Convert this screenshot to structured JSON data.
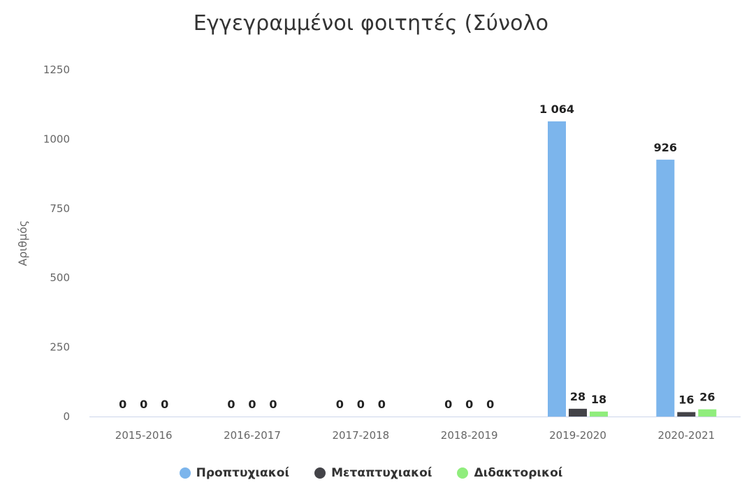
{
  "chart_data": {
    "type": "bar",
    "title": "Εγγεγραμμένοι φοιτητές (Σύνολο",
    "ylabel": "Αριθμός",
    "xlabel": "",
    "ylim": [
      0,
      1250
    ],
    "yticks": [
      0,
      250,
      500,
      750,
      1000,
      1250
    ],
    "ytick_labels": [
      "0",
      "250",
      "500",
      "750",
      "1000",
      "1250"
    ],
    "categories": [
      "2015-2016",
      "2016-2017",
      "2017-2018",
      "2018-2019",
      "2019-2020",
      "2020-2021"
    ],
    "series": [
      {
        "name": "Προπτυχιακοί",
        "color": "#7cb5ec",
        "values": [
          0,
          0,
          0,
          0,
          1064,
          926
        ],
        "labels": [
          "0",
          "0",
          "0",
          "0",
          "1 064",
          "926"
        ]
      },
      {
        "name": "Μεταπτυχιακοί",
        "color": "#434348",
        "values": [
          0,
          0,
          0,
          0,
          28,
          16
        ],
        "labels": [
          "0",
          "0",
          "0",
          "0",
          "28",
          "16"
        ]
      },
      {
        "name": "Διδακτορικοί",
        "color": "#90ed7d",
        "values": [
          0,
          0,
          0,
          0,
          18,
          26
        ],
        "labels": [
          "0",
          "0",
          "0",
          "0",
          "18",
          "26"
        ]
      }
    ],
    "grid": false,
    "legend_position": "bottom-center"
  }
}
